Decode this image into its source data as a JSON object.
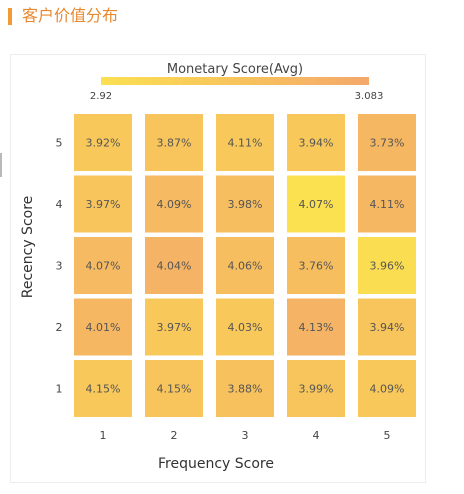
{
  "header": {
    "title": "客户价值分布",
    "accent_color": "#f29a33"
  },
  "chart_data": {
    "type": "heatmap",
    "title": "",
    "xlabel": "Frequency Score",
    "ylabel": "Recency Score",
    "x_categories": [
      "1",
      "2",
      "3",
      "4",
      "5"
    ],
    "y_categories": [
      "5",
      "4",
      "3",
      "2",
      "1"
    ],
    "cell_labels": [
      [
        "3.92%",
        "3.87%",
        "4.11%",
        "3.94%",
        "3.73%"
      ],
      [
        "3.97%",
        "4.09%",
        "3.98%",
        "4.07%",
        "4.11%"
      ],
      [
        "4.07%",
        "4.04%",
        "4.06%",
        "3.76%",
        "3.96%"
      ],
      [
        "4.01%",
        "3.97%",
        "4.03%",
        "4.13%",
        "3.94%"
      ],
      [
        "4.15%",
        "4.15%",
        "3.88%",
        "3.99%",
        "4.09%"
      ]
    ],
    "monetary": [
      [
        2.99,
        3.0,
        2.99,
        2.99,
        3.04
      ],
      [
        3.0,
        3.03,
        3.02,
        2.92,
        3.04
      ],
      [
        3.03,
        3.05,
        3.02,
        3.02,
        2.93
      ],
      [
        3.04,
        2.99,
        2.99,
        3.05,
        3.0
      ],
      [
        2.99,
        3.0,
        3.01,
        3.0,
        2.99
      ]
    ],
    "color_legend": {
      "title": "Monetary Score(Avg)",
      "min": 2.92,
      "max": 3.083,
      "min_label": "2.92",
      "max_label": "3.083",
      "low_color": "#fbe050",
      "high_color": "#f4a86a"
    }
  }
}
